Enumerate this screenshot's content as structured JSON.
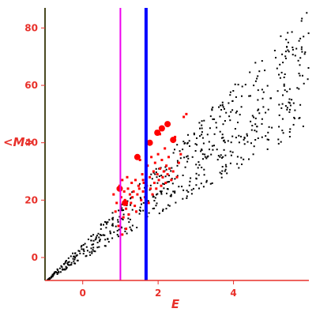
{
  "chart_data": {
    "type": "scatter",
    "xlabel": "E",
    "ylabel": "<M>",
    "xlim": [
      -1,
      6
    ],
    "ylim": [
      -8,
      87
    ],
    "x_ticks": [
      0,
      2,
      4
    ],
    "y_ticks": [
      0,
      20,
      40,
      60,
      80
    ],
    "grid": false,
    "colors": {
      "axes": "#4a4a22",
      "labels": "#e8302a",
      "background_points": "#000000",
      "highlight_points": "#ff0000",
      "marker_line": "#ee00ee",
      "threshold_line": "#0000ff"
    },
    "vertical_lines": [
      {
        "x": 1.0,
        "color": "#ee00ee",
        "width": 2
      },
      {
        "x": 1.68,
        "color": "#0000ff",
        "width": 4
      }
    ],
    "background_band": {
      "upper_start": [
        -1,
        -8
      ],
      "upper_end": [
        6,
        88
      ],
      "lower_start": [
        -1,
        -8
      ],
      "lower_end": [
        6,
        46
      ],
      "count": 620
    },
    "highlight_points": [
      [
        0.82,
        22
      ],
      [
        0.87,
        16
      ],
      [
        0.9,
        19
      ],
      [
        0.93,
        24
      ],
      [
        0.95,
        11
      ],
      [
        0.98,
        25
      ],
      [
        1.02,
        21
      ],
      [
        1.05,
        27
      ],
      [
        1.08,
        14
      ],
      [
        1.1,
        23
      ],
      [
        1.12,
        20
      ],
      [
        1.15,
        17
      ],
      [
        1.18,
        28
      ],
      [
        1.2,
        24
      ],
      [
        1.22,
        15
      ],
      [
        1.25,
        22
      ],
      [
        1.28,
        19
      ],
      [
        1.3,
        26
      ],
      [
        1.32,
        21
      ],
      [
        1.35,
        23
      ],
      [
        1.38,
        18
      ],
      [
        1.4,
        27
      ],
      [
        1.42,
        16
      ],
      [
        1.45,
        22
      ],
      [
        1.48,
        25
      ],
      [
        1.5,
        24
      ],
      [
        1.52,
        34
      ],
      [
        1.55,
        20
      ],
      [
        1.58,
        29
      ],
      [
        1.6,
        23
      ],
      [
        1.62,
        26
      ],
      [
        1.65,
        21
      ],
      [
        1.7,
        25
      ],
      [
        1.72,
        32
      ],
      [
        1.75,
        19
      ],
      [
        1.78,
        28
      ],
      [
        1.8,
        24
      ],
      [
        1.82,
        35
      ],
      [
        1.85,
        22
      ],
      [
        1.88,
        30
      ],
      [
        1.9,
        26
      ],
      [
        1.92,
        33
      ],
      [
        1.95,
        24
      ],
      [
        1.98,
        29
      ],
      [
        2.0,
        36
      ],
      [
        2.02,
        27
      ],
      [
        2.05,
        31
      ],
      [
        2.08,
        25
      ],
      [
        2.1,
        34
      ],
      [
        2.12,
        28
      ],
      [
        2.15,
        30
      ],
      [
        2.18,
        38
      ],
      [
        2.2,
        26
      ],
      [
        2.22,
        32
      ],
      [
        2.25,
        29
      ],
      [
        2.28,
        35
      ],
      [
        2.3,
        31
      ],
      [
        2.35,
        27
      ],
      [
        2.4,
        30
      ],
      [
        2.45,
        42
      ],
      [
        2.5,
        28
      ],
      [
        2.55,
        33
      ],
      [
        2.6,
        36
      ],
      [
        2.68,
        49
      ],
      [
        2.75,
        50
      ],
      [
        1.05,
        8
      ],
      [
        1.15,
        10
      ],
      [
        1.6,
        27
      ],
      [
        1.95,
        44
      ],
      [
        2.05,
        43
      ]
    ],
    "highlight_big_points": [
      [
        0.98,
        24
      ],
      [
        1.45,
        35
      ],
      [
        1.78,
        40
      ],
      [
        1.98,
        43.5
      ],
      [
        2.1,
        45
      ],
      [
        2.25,
        46.5
      ],
      [
        2.4,
        41
      ],
      [
        1.12,
        19
      ]
    ]
  }
}
